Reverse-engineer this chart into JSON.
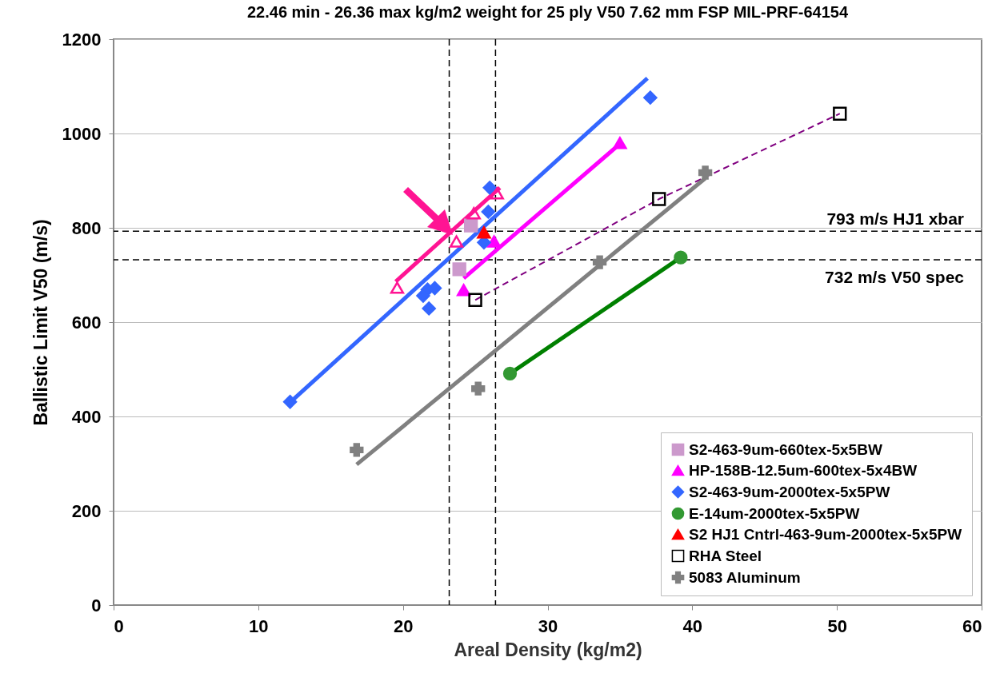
{
  "chart_data": {
    "type": "scatter",
    "title": "22.46 min - 26.36 max kg/m2 weight for 25 ply V50 7.62 mm FSP MIL-PRF-64154",
    "xlabel": "Areal Density (kg/m2)",
    "ylabel": "Ballistic Limit V50 (m/s)",
    "xlim": [
      0,
      60
    ],
    "xticks": [
      0,
      10,
      20,
      30,
      40,
      50,
      60
    ],
    "ylim": [
      0,
      1200
    ],
    "yticks": [
      0,
      200,
      400,
      600,
      800,
      1000,
      1200
    ],
    "grid": "y",
    "legend": "bottom right",
    "series": [
      {
        "name": "S2-463-9um-660tex-5x5BW",
        "type": "scatter",
        "marker": "square",
        "color": "#cc99cc",
        "x": [
          23.9,
          24.7
        ],
        "values": [
          712,
          805
        ]
      },
      {
        "name": "HP-158B-12.5um-600tex-5x4BW",
        "type": "scatter",
        "marker": "triangle",
        "color": "#ff00ff",
        "x": [
          24.2,
          26.3,
          35.0
        ],
        "values": [
          668,
          771,
          980
        ]
      },
      {
        "name": "S2-463-9um-2000tex-5x5PW",
        "type": "scatter",
        "marker": "diamond",
        "color": "#3366ff",
        "x": [
          12.2,
          21.4,
          21.7,
          21.8,
          22.2,
          25.6,
          25.9,
          26.0,
          37.1
        ],
        "values": [
          431,
          656,
          669,
          629,
          672,
          769,
          834,
          885,
          1076
        ]
      },
      {
        "name": "E-14um-2000tex-5x5PW",
        "type": "scatter",
        "marker": "circle",
        "color": "#339933",
        "x": [
          27.4,
          39.2
        ],
        "values": [
          491,
          737
        ]
      },
      {
        "name": "S2 HJ1 Cntrl-463-9um-2000tex-5x5PW",
        "type": "scatter",
        "marker": "triangle",
        "color": "#ff0000",
        "x": [
          25.6
        ],
        "values": [
          790
        ]
      },
      {
        "name": "RHA Steel",
        "type": "line",
        "line_style": "dashed",
        "marker": "square",
        "color": "#800080",
        "x": [
          25.0,
          37.7,
          50.2
        ],
        "values": [
          647,
          861,
          1042
        ]
      },
      {
        "name": "5083 Aluminum",
        "type": "scatter",
        "marker": "cross",
        "color": "#808080",
        "x": [
          16.8,
          25.2,
          33.6,
          40.9
        ],
        "values": [
          329,
          459,
          727,
          917
        ]
      },
      {
        "type": "scatter",
        "marker": "triangle",
        "color": "#ff1493",
        "x": [
          19.6,
          23.7,
          24.9,
          26.5
        ],
        "values": [
          673,
          771,
          831,
          873
        ]
      },
      {
        "type": "line",
        "color": "#ff1493",
        "x": [
          19.5,
          26.7
        ],
        "values": [
          686,
          885
        ]
      },
      {
        "type": "line",
        "color": "#ff00ff",
        "x": [
          24.2,
          35.0
        ],
        "values": [
          693,
          978
        ]
      },
      {
        "type": "line",
        "color": "#3366ff",
        "x": [
          12.2,
          36.9
        ],
        "values": [
          430,
          1117
        ]
      },
      {
        "type": "line",
        "color": "#008000",
        "x": [
          27.4,
          39.2
        ],
        "values": [
          491,
          737
        ]
      },
      {
        "type": "line",
        "color": "#808080",
        "x": [
          16.8,
          40.9
        ],
        "values": [
          298,
          905
        ]
      }
    ],
    "ref_lines": [
      {
        "axis": "y",
        "value": 793,
        "label": "793 m/s HJ1 xbar",
        "line_style": "dashed"
      },
      {
        "axis": "y",
        "value": 732,
        "label": "732 m/s V50 spec",
        "line_style": "dashed"
      },
      {
        "axis": "x",
        "value": 23.2,
        "line_style": "dashed"
      },
      {
        "axis": "x",
        "value": 26.4,
        "line_style": "dashed"
      }
    ]
  }
}
